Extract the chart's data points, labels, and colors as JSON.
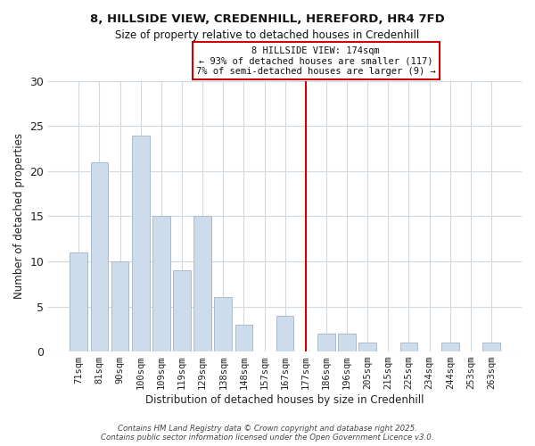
{
  "title": "8, HILLSIDE VIEW, CREDENHILL, HEREFORD, HR4 7FD",
  "subtitle": "Size of property relative to detached houses in Credenhill",
  "xlabel": "Distribution of detached houses by size in Credenhill",
  "ylabel": "Number of detached properties",
  "bar_labels": [
    "71sqm",
    "81sqm",
    "90sqm",
    "100sqm",
    "109sqm",
    "119sqm",
    "129sqm",
    "138sqm",
    "148sqm",
    "157sqm",
    "167sqm",
    "177sqm",
    "186sqm",
    "196sqm",
    "205sqm",
    "215sqm",
    "225sqm",
    "234sqm",
    "244sqm",
    "253sqm",
    "263sqm"
  ],
  "bar_values": [
    11,
    21,
    10,
    24,
    15,
    9,
    15,
    6,
    3,
    0,
    4,
    0,
    2,
    2,
    1,
    0,
    1,
    0,
    1,
    0,
    1
  ],
  "bar_color": "#ccdcec",
  "bar_edgecolor": "#aabccc",
  "vline_index": 11,
  "vline_color": "#cc0000",
  "ylim": [
    0,
    30
  ],
  "yticks": [
    0,
    5,
    10,
    15,
    20,
    25,
    30
  ],
  "annotation_title": "8 HILLSIDE VIEW: 174sqm",
  "annotation_line1": "← 93% of detached houses are smaller (117)",
  "annotation_line2": "7% of semi-detached houses are larger (9) →",
  "footer_line1": "Contains HM Land Registry data © Crown copyright and database right 2025.",
  "footer_line2": "Contains public sector information licensed under the Open Government Licence v3.0.",
  "background_color": "#ffffff",
  "plot_background": "#ffffff",
  "grid_color": "#d0d8e0"
}
